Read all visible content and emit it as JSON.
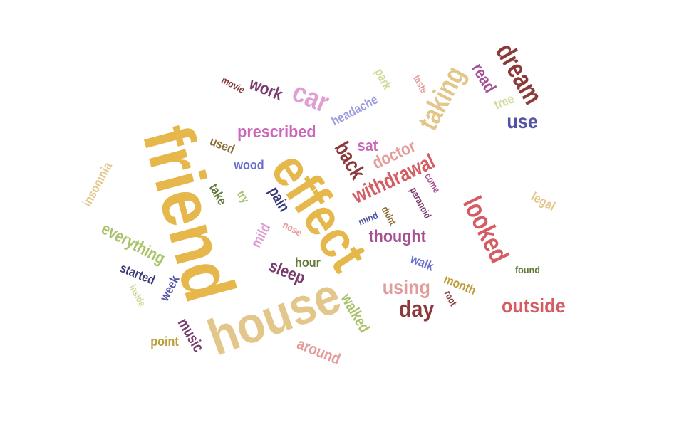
{
  "palette": {
    "gold": "#e6b84c",
    "tan": "#e3c68a",
    "pink": "#df9fd2",
    "magenta": "#cc66bb",
    "red": "#d55c62",
    "rose": "#e29c9c",
    "maroon": "#8b3a3a",
    "purple": "#7a3c6e",
    "navy": "#393b79",
    "blue": "#5254a3",
    "periwinkle": "#6b6ecf",
    "lavender": "#9c9ede",
    "olive": "#637939",
    "green": "#a8c36a",
    "lightgreen": "#cedb9c",
    "brown": "#8c6d31",
    "mustard": "#bd9e39",
    "violet": "#a55194"
  },
  "words": [
    {
      "text": "friend",
      "color": "gold"
    },
    {
      "text": "effect",
      "color": "gold"
    },
    {
      "text": "house",
      "color": "tan"
    },
    {
      "text": "taking",
      "color": "tan"
    },
    {
      "text": "car",
      "color": "pink"
    },
    {
      "text": "dream",
      "color": "maroon"
    },
    {
      "text": "looked",
      "color": "red"
    },
    {
      "text": "withdrawal",
      "color": "red"
    },
    {
      "text": "outside",
      "color": "red"
    },
    {
      "text": "day",
      "color": "maroon"
    },
    {
      "text": "using",
      "color": "rose"
    },
    {
      "text": "prescribed",
      "color": "magenta"
    },
    {
      "text": "back",
      "color": "maroon"
    },
    {
      "text": "doctor",
      "color": "rose"
    },
    {
      "text": "thought",
      "color": "violet"
    },
    {
      "text": "use",
      "color": "blue"
    },
    {
      "text": "read",
      "color": "violet"
    },
    {
      "text": "work",
      "color": "purple"
    },
    {
      "text": "sleep",
      "color": "purple"
    },
    {
      "text": "everything",
      "color": "green"
    },
    {
      "text": "walked",
      "color": "green"
    },
    {
      "text": "around",
      "color": "rose"
    },
    {
      "text": "music",
      "color": "purple"
    },
    {
      "text": "headache",
      "color": "lavender"
    },
    {
      "text": "insomnia",
      "color": "tan"
    },
    {
      "text": "sat",
      "color": "magenta"
    },
    {
      "text": "pain",
      "color": "navy"
    },
    {
      "text": "mild",
      "color": "pink"
    },
    {
      "text": "hour",
      "color": "olive"
    },
    {
      "text": "started",
      "color": "navy"
    },
    {
      "text": "week",
      "color": "blue"
    },
    {
      "text": "month",
      "color": "mustard"
    },
    {
      "text": "walk",
      "color": "periwinkle"
    },
    {
      "text": "point",
      "color": "mustard"
    },
    {
      "text": "park",
      "color": "lightgreen"
    },
    {
      "text": "tree",
      "color": "lightgreen"
    },
    {
      "text": "used",
      "color": "brown"
    },
    {
      "text": "wood",
      "color": "periwinkle"
    },
    {
      "text": "take",
      "color": "olive"
    },
    {
      "text": "try",
      "color": "green"
    },
    {
      "text": "legal",
      "color": "tan"
    },
    {
      "text": "found",
      "color": "olive"
    },
    {
      "text": "movie",
      "color": "maroon"
    },
    {
      "text": "taste",
      "color": "rose"
    },
    {
      "text": "come",
      "color": "violet"
    },
    {
      "text": "paranoid",
      "color": "purple"
    },
    {
      "text": "didnt",
      "color": "brown"
    },
    {
      "text": "mind",
      "color": "blue"
    },
    {
      "text": "nose",
      "color": "rose"
    },
    {
      "text": "inside",
      "color": "lightgreen"
    },
    {
      "text": "root",
      "color": "maroon"
    }
  ]
}
